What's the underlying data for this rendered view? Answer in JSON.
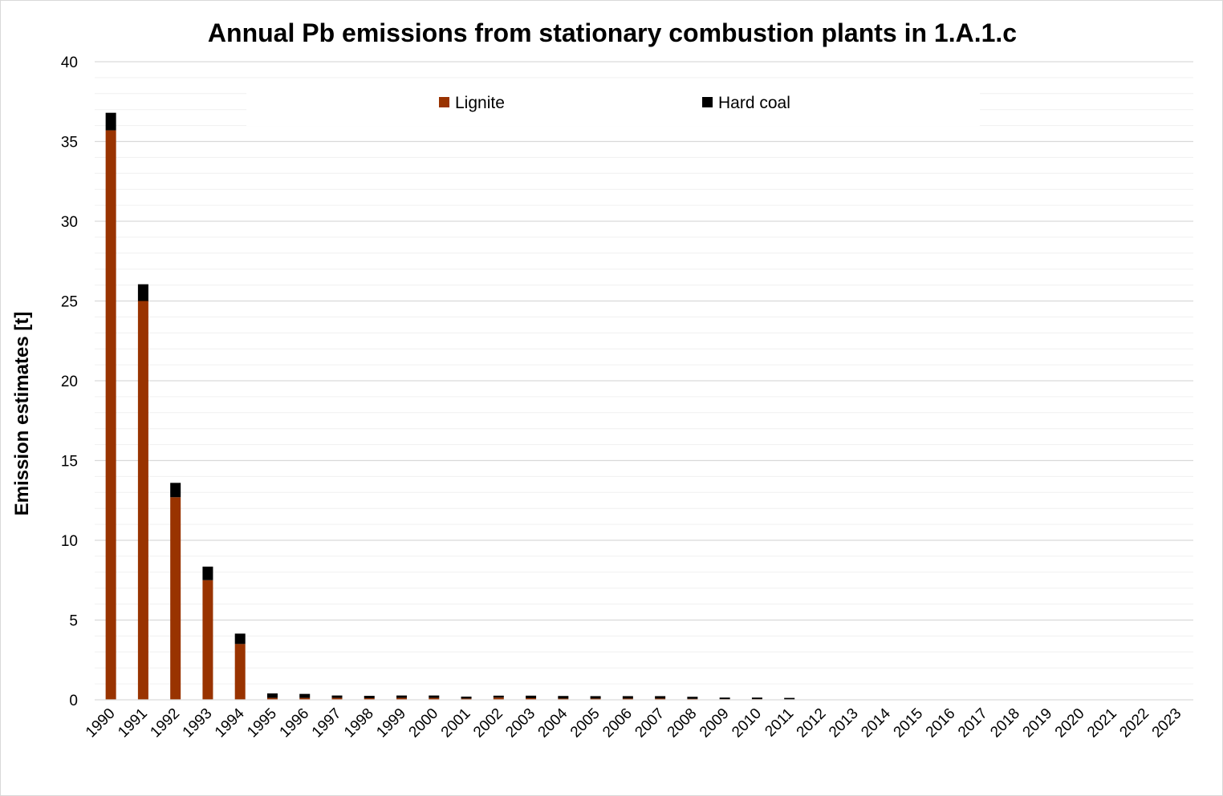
{
  "chart_data": {
    "type": "bar",
    "stacked": true,
    "title": "Annual Pb emissions from stationary combustion plants in 1.A.1.c",
    "xlabel": "",
    "ylabel": "Emission estimates [t]",
    "ylim": [
      0,
      40
    ],
    "yticks": [
      "0",
      "5",
      "10",
      "15",
      "20",
      "25",
      "30",
      "35",
      "40"
    ],
    "grid": true,
    "legend_position": "top-center",
    "categories": [
      "1990",
      "1991",
      "1992",
      "1993",
      "1994",
      "1995",
      "1996",
      "1997",
      "1998",
      "1999",
      "2000",
      "2001",
      "2002",
      "2003",
      "2004",
      "2005",
      "2006",
      "2007",
      "2008",
      "2009",
      "2010",
      "2011",
      "2012",
      "2013",
      "2014",
      "2015",
      "2016",
      "2017",
      "2018",
      "2019",
      "2020",
      "2021",
      "2022",
      "2023"
    ],
    "series": [
      {
        "name": "Lignite",
        "color": "#993300",
        "values": [
          35.7,
          25.0,
          12.7,
          7.5,
          3.5,
          0.12,
          0.12,
          0.12,
          0.1,
          0.12,
          0.12,
          0.08,
          0.14,
          0.1,
          0.08,
          0.08,
          0.08,
          0.08,
          0.06,
          0.04,
          0.04,
          0.03,
          0,
          0,
          0,
          0,
          0,
          0,
          0,
          0,
          0,
          0,
          0,
          0
        ]
      },
      {
        "name": "Hard coal",
        "color": "#000000",
        "values": [
          1.1,
          1.05,
          0.9,
          0.85,
          0.65,
          0.28,
          0.25,
          0.15,
          0.15,
          0.15,
          0.15,
          0.12,
          0.12,
          0.16,
          0.16,
          0.15,
          0.15,
          0.15,
          0.13,
          0.1,
          0.1,
          0.09,
          0,
          0,
          0,
          0,
          0,
          0,
          0,
          0,
          0,
          0,
          0,
          0
        ]
      }
    ]
  }
}
